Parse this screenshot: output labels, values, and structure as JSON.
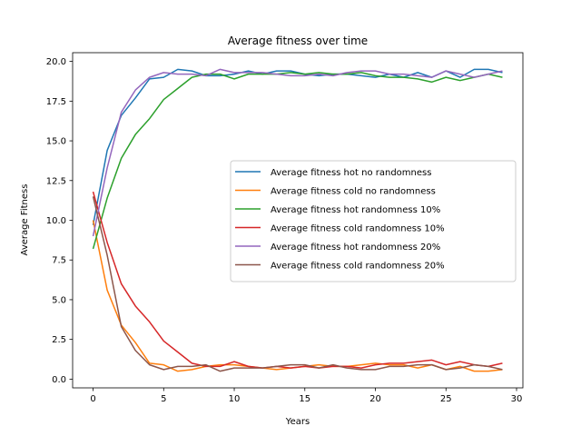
{
  "chart_data": {
    "type": "line",
    "title": "Average fitness over time",
    "xlabel": "Years",
    "ylabel": "Average Fitness",
    "xlim": [
      -1.45,
      30.45
    ],
    "ylim": [
      -0.55,
      20.55
    ],
    "xticks": [
      0,
      5,
      10,
      15,
      20,
      25,
      30
    ],
    "xtick_labels": [
      "0",
      "5",
      "10",
      "15",
      "20",
      "25",
      "30"
    ],
    "yticks": [
      0,
      2.5,
      5,
      7.5,
      10,
      12.5,
      15,
      17.5,
      20
    ],
    "ytick_labels": [
      "0.0",
      "2.5",
      "5.0",
      "7.5",
      "10.0",
      "12.5",
      "15.0",
      "17.5",
      "20.0"
    ],
    "grid": false,
    "legend_position": "center-right",
    "x": [
      0,
      1,
      2,
      3,
      4,
      5,
      6,
      7,
      8,
      9,
      10,
      11,
      12,
      13,
      14,
      15,
      16,
      17,
      18,
      19,
      20,
      21,
      22,
      23,
      24,
      25,
      26,
      27,
      28,
      29
    ],
    "series": [
      {
        "name": "Average fitness hot no randomness",
        "color": "#1f77b4",
        "values": [
          9.7,
          14.4,
          16.6,
          17.7,
          18.9,
          19.0,
          19.5,
          19.4,
          19.1,
          19.1,
          19.2,
          19.4,
          19.2,
          19.4,
          19.4,
          19.2,
          19.1,
          19.2,
          19.2,
          19.1,
          19.0,
          19.2,
          19.0,
          19.3,
          19.0,
          19.4,
          19.0,
          19.5,
          19.5,
          19.3
        ]
      },
      {
        "name": "Average fitness cold no randomness",
        "color": "#ff7f0e",
        "values": [
          10.0,
          5.6,
          3.4,
          2.3,
          1.0,
          0.9,
          0.5,
          0.6,
          0.8,
          0.9,
          0.9,
          0.8,
          0.7,
          0.6,
          0.7,
          0.8,
          0.9,
          0.8,
          0.8,
          0.9,
          1.0,
          0.9,
          0.9,
          0.7,
          0.9,
          0.6,
          0.8,
          0.5,
          0.5,
          0.6
        ]
      },
      {
        "name": "Average fitness hot randomness 10%",
        "color": "#2ca02c",
        "values": [
          8.2,
          11.4,
          13.9,
          15.4,
          16.4,
          17.6,
          18.3,
          19.0,
          19.2,
          19.2,
          18.9,
          19.2,
          19.2,
          19.2,
          19.3,
          19.2,
          19.3,
          19.2,
          19.2,
          19.3,
          19.1,
          19.0,
          19.0,
          18.9,
          18.7,
          19.0,
          18.8,
          19.0,
          19.2,
          19.0
        ]
      },
      {
        "name": "Average fitness cold randomness 10%",
        "color": "#d62728",
        "values": [
          11.8,
          8.6,
          6.0,
          4.6,
          3.6,
          2.4,
          1.7,
          1.0,
          0.8,
          0.8,
          1.1,
          0.8,
          0.7,
          0.8,
          0.7,
          0.8,
          0.7,
          0.8,
          0.8,
          0.7,
          0.9,
          1.0,
          1.0,
          1.1,
          1.2,
          0.9,
          1.1,
          0.9,
          0.8,
          1.0
        ]
      },
      {
        "name": "Average fitness hot randomness 20%",
        "color": "#9467bd",
        "values": [
          9.0,
          13.3,
          16.8,
          18.2,
          19.0,
          19.3,
          19.2,
          19.2,
          19.1,
          19.5,
          19.3,
          19.3,
          19.3,
          19.2,
          19.1,
          19.1,
          19.2,
          19.1,
          19.3,
          19.4,
          19.4,
          19.2,
          19.2,
          19.1,
          19.0,
          19.4,
          19.2,
          19.0,
          19.2,
          19.4
        ]
      },
      {
        "name": "Average fitness cold randomness 20%",
        "color": "#8c564b",
        "values": [
          11.5,
          7.8,
          3.3,
          1.8,
          0.9,
          0.6,
          0.8,
          0.8,
          0.9,
          0.5,
          0.7,
          0.7,
          0.7,
          0.8,
          0.9,
          0.9,
          0.7,
          0.9,
          0.7,
          0.6,
          0.6,
          0.8,
          0.8,
          0.9,
          0.9,
          0.6,
          0.7,
          0.9,
          0.8,
          0.6
        ]
      }
    ]
  }
}
